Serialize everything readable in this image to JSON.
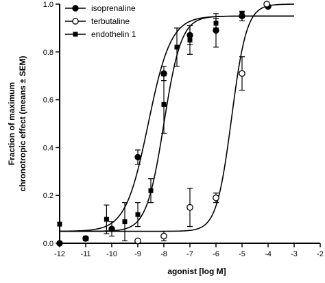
{
  "chart_data": {
    "type": "scatter",
    "title": "",
    "xlabel": "agonist [log M]",
    "ylabel_line1": "Fraction of maximum",
    "ylabel_line2": "chronotropic effect (means ± SEM)",
    "xlim": [
      -12,
      -2
    ],
    "ylim": [
      0,
      1.0
    ],
    "x_ticks": [
      -12,
      -11,
      -10,
      -9,
      -8,
      -7,
      -6,
      -5,
      -4,
      -3,
      -2
    ],
    "x_tick_labels": [
      "-12",
      "-11",
      "-10",
      "-9",
      "-8",
      "-7",
      "-6",
      "-5",
      "-4",
      "-3",
      "-2"
    ],
    "y_ticks": [
      0,
      0.2,
      0.4,
      0.6,
      0.8,
      1.0
    ],
    "y_tick_labels": [
      "0.0",
      "0.2",
      "0.4",
      "0.6",
      "0.8",
      "1.0"
    ],
    "legend_position": "top-left",
    "series": [
      {
        "name": "isoprenaline",
        "marker": "filled-circle",
        "points": [
          {
            "x": -12,
            "y": 0.0,
            "err": 0.0
          },
          {
            "x": -11,
            "y": 0.02,
            "err": 0.01
          },
          {
            "x": -10,
            "y": 0.06,
            "err": 0.03
          },
          {
            "x": -9,
            "y": 0.36,
            "err": 0.03
          },
          {
            "x": -8,
            "y": 0.71,
            "err": 0.03
          },
          {
            "x": -7,
            "y": 0.87,
            "err": 0.04
          },
          {
            "x": -6,
            "y": 0.89,
            "err": 0.07
          },
          {
            "x": -5,
            "y": 0.95,
            "err": 0.02
          },
          {
            "x": -4,
            "y": 0.99,
            "err": 0.0
          }
        ],
        "fit": {
          "bottom": 0.05,
          "top": 0.95,
          "logEC50": -8.6,
          "hill": 1.0
        }
      },
      {
        "name": "terbutaline",
        "marker": "open-circle",
        "points": [
          {
            "x": -9,
            "y": 0.01,
            "err": 0.0
          },
          {
            "x": -8,
            "y": 0.03,
            "err": 0.02
          },
          {
            "x": -7,
            "y": 0.15,
            "err": 0.08
          },
          {
            "x": -6,
            "y": 0.19,
            "err": 0.02
          },
          {
            "x": -5,
            "y": 0.71,
            "err": 0.07
          },
          {
            "x": -4.05,
            "y": 1.0,
            "err": 0.0
          }
        ],
        "fit": {
          "bottom": 0.05,
          "top": 1.0,
          "logEC50": -5.4,
          "hill": 1.5
        }
      },
      {
        "name": "endothelin 1",
        "marker": "filled-square",
        "points": [
          {
            "x": -12,
            "y": 0.08,
            "err": 0.0
          },
          {
            "x": -10.2,
            "y": 0.1,
            "err": 0.06
          },
          {
            "x": -9.5,
            "y": 0.09,
            "err": 0.08
          },
          {
            "x": -9,
            "y": 0.12,
            "err": 0.05
          },
          {
            "x": -8.5,
            "y": 0.22,
            "err": 0.05
          },
          {
            "x": -8,
            "y": 0.58,
            "err": 0.12
          },
          {
            "x": -7.5,
            "y": 0.82,
            "err": 0.08
          },
          {
            "x": -7,
            "y": 0.85,
            "err": 0.06
          },
          {
            "x": -6,
            "y": 0.92,
            "err": 0.02
          },
          {
            "x": -5,
            "y": 0.96,
            "err": 0.01
          }
        ],
        "fit": {
          "bottom": 0.05,
          "top": 0.95,
          "logEC50": -8.0,
          "hill": 1.3
        }
      }
    ]
  }
}
